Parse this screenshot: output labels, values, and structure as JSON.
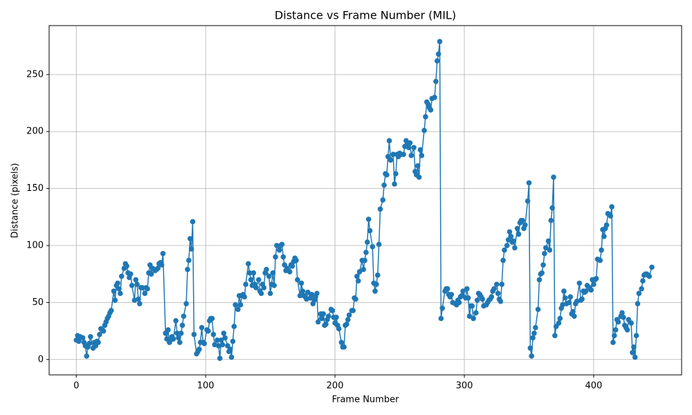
{
  "chart_data": {
    "type": "line",
    "title": "Distance vs Frame Number (MIL)",
    "x_label": "Frame Number",
    "y_label": "Distance (pixels)",
    "xlim": [
      -21,
      468
    ],
    "ylim": [
      -13.5,
      293
    ],
    "xticks": [
      0,
      100,
      200,
      300,
      400
    ],
    "yticks": [
      0,
      50,
      100,
      150,
      200,
      250
    ],
    "grid": true,
    "x": [
      0,
      1,
      2,
      3,
      5,
      6,
      7,
      8,
      9,
      10,
      11,
      13,
      14,
      15,
      16,
      17,
      18,
      19,
      21,
      22,
      23,
      24,
      25,
      26,
      27,
      29,
      30,
      31,
      32,
      33,
      34,
      35,
      37,
      38,
      39,
      40,
      41,
      42,
      43,
      45,
      46,
      47,
      48,
      49,
      50,
      51,
      53,
      54,
      55,
      56,
      57,
      58,
      59,
      61,
      62,
      63,
      64,
      65,
      66,
      67,
      69,
      70,
      71,
      72,
      73,
      74,
      75,
      77,
      78,
      79,
      80,
      81,
      82,
      83,
      85,
      86,
      87,
      88,
      89,
      90,
      91,
      93,
      94,
      95,
      96,
      97,
      98,
      99,
      101,
      102,
      103,
      104,
      105,
      106,
      107,
      109,
      110,
      111,
      112,
      113,
      114,
      115,
      117,
      118,
      119,
      120,
      121,
      122,
      123,
      125,
      126,
      127,
      128,
      129,
      130,
      131,
      133,
      134,
      135,
      136,
      137,
      138,
      139,
      141,
      142,
      143,
      144,
      145,
      146,
      147,
      149,
      150,
      151,
      152,
      153,
      154,
      155,
      157,
      158,
      159,
      160,
      161,
      162,
      163,
      165,
      166,
      167,
      168,
      169,
      170,
      171,
      173,
      174,
      175,
      176,
      177,
      178,
      179,
      181,
      182,
      183,
      184,
      185,
      186,
      187,
      189,
      190,
      191,
      192,
      193,
      194,
      195,
      197,
      198,
      199,
      200,
      201,
      202,
      203,
      205,
      206,
      207,
      208,
      209,
      210,
      211,
      213,
      214,
      215,
      216,
      217,
      218,
      219,
      221,
      222,
      223,
      224,
      225,
      226,
      227,
      229,
      230,
      231,
      232,
      233,
      234,
      235,
      237,
      238,
      239,
      240,
      241,
      242,
      243,
      245,
      246,
      247,
      248,
      249,
      250,
      251,
      253,
      254,
      255,
      256,
      257,
      258,
      259,
      261,
      262,
      263,
      264,
      265,
      266,
      267,
      269,
      270,
      271,
      272,
      273,
      274,
      275,
      277,
      278,
      279,
      280,
      281,
      282,
      283,
      285,
      286,
      287,
      288,
      289,
      290,
      291,
      293,
      294,
      295,
      296,
      297,
      298,
      299,
      301,
      302,
      303,
      304,
      305,
      306,
      307,
      309,
      310,
      311,
      312,
      313,
      314,
      315,
      317,
      318,
      319,
      320,
      321,
      322,
      323,
      325,
      326,
      327,
      328,
      329,
      330,
      331,
      333,
      334,
      335,
      336,
      337,
      338,
      339,
      341,
      342,
      343,
      344,
      345,
      346,
      347,
      349,
      350,
      351,
      352,
      353,
      354,
      355,
      357,
      358,
      359,
      360,
      361,
      362,
      363,
      365,
      366,
      367,
      368,
      369,
      370,
      371,
      373,
      374,
      375,
      376,
      377,
      378,
      379,
      381,
      382,
      383,
      384,
      385,
      386,
      387,
      389,
      390,
      391,
      392,
      393,
      394,
      395,
      397,
      398,
      399,
      400,
      401,
      402,
      403,
      405,
      406,
      407,
      408,
      409,
      410,
      411,
      413,
      414,
      415,
      416,
      417,
      418,
      419,
      421,
      422,
      423,
      424,
      425,
      426,
      427,
      429,
      430,
      431,
      432,
      433,
      434,
      435,
      437,
      438,
      439,
      440,
      441,
      442,
      443,
      445
    ],
    "series": [
      {
        "name": "Distance",
        "color": "#1f77b4",
        "values": [
          17,
          21,
          16,
          20,
          19,
          15,
          12,
          3,
          11,
          14,
          20,
          10,
          15,
          12,
          16,
          15,
          22,
          27,
          25,
          30,
          33,
          36,
          38,
          41,
          43,
          60,
          52,
          65,
          67,
          62,
          58,
          73,
          80,
          84,
          82,
          76,
          72,
          75,
          65,
          52,
          70,
          66,
          53,
          49,
          63,
          63,
          58,
          63,
          62,
          76,
          83,
          75,
          80,
          78,
          79,
          80,
          84,
          85,
          83,
          93,
          23,
          18,
          26,
          15,
          17,
          20,
          18,
          34,
          23,
          19,
          15,
          23,
          30,
          38,
          49,
          79,
          87,
          106,
          97,
          121,
          22,
          5,
          7,
          9,
          15,
          28,
          15,
          14,
          26,
          25,
          34,
          36,
          36,
          22,
          13,
          17,
          12,
          1,
          17,
          13,
          23,
          19,
          12,
          7,
          9,
          2,
          16,
          29,
          48,
          44,
          56,
          48,
          56,
          57,
          55,
          66,
          84,
          76,
          70,
          65,
          76,
          66,
          63,
          70,
          60,
          58,
          66,
          63,
          76,
          79,
          73,
          58,
          66,
          76,
          65,
          90,
          100,
          96,
          100,
          101,
          90,
          83,
          78,
          80,
          77,
          83,
          82,
          86,
          89,
          87,
          70,
          56,
          67,
          60,
          56,
          55,
          53,
          59,
          54,
          57,
          49,
          52,
          55,
          58,
          33,
          40,
          36,
          40,
          30,
          31,
          35,
          38,
          44,
          43,
          37,
          32,
          37,
          30,
          27,
          15,
          11,
          11,
          30,
          31,
          35,
          39,
          43,
          43,
          54,
          53,
          73,
          69,
          77,
          87,
          79,
          87,
          94,
          103,
          123,
          113,
          99,
          67,
          60,
          66,
          74,
          101,
          132,
          140,
          153,
          163,
          162,
          178,
          192,
          175,
          180,
          154,
          163,
          180,
          178,
          181,
          180,
          180,
          187,
          192,
          190,
          186,
          190,
          179,
          186,
          165,
          162,
          170,
          160,
          184,
          179,
          201,
          213,
          226,
          224,
          221,
          219,
          229,
          230,
          244,
          262,
          268,
          279,
          36,
          45,
          60,
          62,
          62,
          57,
          55,
          57,
          50,
          49,
          48,
          52,
          50,
          55,
          56,
          60,
          54,
          62,
          54,
          38,
          47,
          47,
          36,
          41,
          52,
          58,
          57,
          55,
          53,
          47,
          48,
          50,
          52,
          53,
          55,
          60,
          62,
          66,
          58,
          53,
          51,
          66,
          87,
          96,
          100,
          105,
          112,
          108,
          103,
          104,
          98,
          115,
          110,
          120,
          122,
          122,
          115,
          118,
          139,
          155,
          10,
          3,
          19,
          23,
          28,
          44,
          70,
          75,
          76,
          83,
          93,
          98,
          104,
          96,
          122,
          133,
          160,
          21,
          29,
          32,
          36,
          45,
          48,
          60,
          54,
          49,
          50,
          55,
          40,
          42,
          38,
          49,
          51,
          67,
          52,
          53,
          60,
          59,
          60,
          65,
          63,
          61,
          70,
          66,
          70,
          71,
          88,
          87,
          96,
          114,
          108,
          115,
          118,
          128,
          126,
          134,
          15,
          21,
          26,
          35,
          33,
          38,
          41,
          37,
          30,
          28,
          26,
          35,
          32,
          6,
          11,
          2,
          21,
          49,
          58,
          62,
          69,
          74,
          75,
          75,
          74,
          73,
          81
        ]
      }
    ]
  }
}
